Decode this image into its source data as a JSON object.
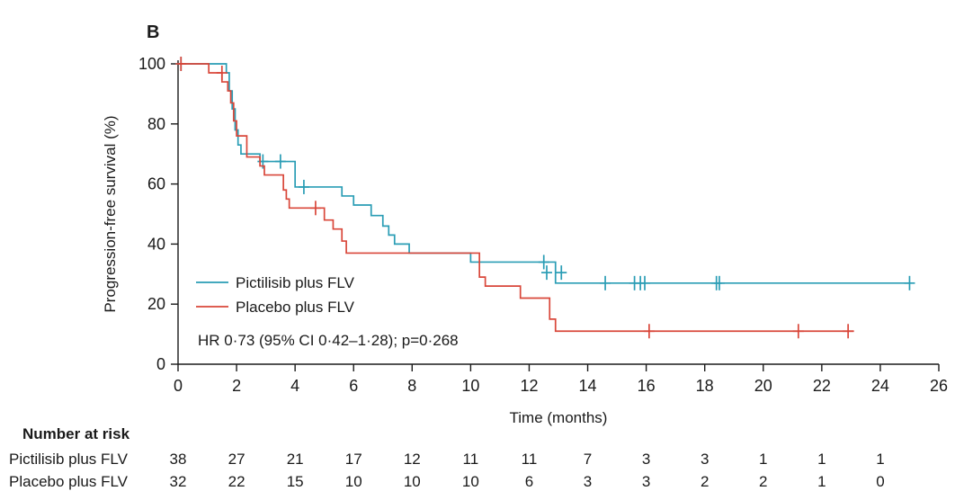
{
  "panel_label": "B",
  "chart_data": {
    "type": "line",
    "subtype": "kaplan-meier step",
    "xlabel": "Time (months)",
    "ylabel": "Progression-free survival (%)",
    "xlim": [
      0,
      26
    ],
    "ylim": [
      0,
      100
    ],
    "x_ticks": [
      0,
      2,
      4,
      6,
      8,
      10,
      12,
      14,
      16,
      18,
      20,
      22,
      24,
      26
    ],
    "y_ticks": [
      0,
      20,
      40,
      60,
      80,
      100
    ],
    "grid": false,
    "legend_position": "lower-left",
    "annotation": "HR 0·73 (95% CI 0·42–1·28); p=0·268",
    "series": [
      {
        "name": "Pictilisib plus FLV",
        "color": "#2a9db5",
        "steps": [
          [
            0,
            100
          ],
          [
            1.65,
            100
          ],
          [
            1.65,
            97
          ],
          [
            1.75,
            97
          ],
          [
            1.75,
            91
          ],
          [
            1.85,
            91
          ],
          [
            1.85,
            85
          ],
          [
            1.95,
            85
          ],
          [
            1.95,
            78
          ],
          [
            2.05,
            78
          ],
          [
            2.05,
            73
          ],
          [
            2.15,
            73
          ],
          [
            2.15,
            70
          ],
          [
            2.8,
            70
          ],
          [
            2.8,
            67.5
          ],
          [
            4,
            67.5
          ],
          [
            4,
            59
          ],
          [
            5.6,
            59
          ],
          [
            5.6,
            56
          ],
          [
            6,
            56
          ],
          [
            6,
            53
          ],
          [
            6.6,
            53
          ],
          [
            6.6,
            49.5
          ],
          [
            7,
            49.5
          ],
          [
            7,
            46
          ],
          [
            7.2,
            46
          ],
          [
            7.2,
            43
          ],
          [
            7.4,
            43
          ],
          [
            7.4,
            40
          ],
          [
            7.9,
            40
          ],
          [
            7.9,
            37
          ],
          [
            10,
            37
          ],
          [
            10,
            34
          ],
          [
            12.9,
            34
          ],
          [
            12.9,
            27
          ],
          [
            25,
            27
          ]
        ],
        "censor": [
          [
            0.1,
            100
          ],
          [
            2.9,
            67.5
          ],
          [
            3.5,
            67.5
          ],
          [
            4.3,
            59
          ],
          [
            12.5,
            34
          ],
          [
            12.6,
            30.5
          ],
          [
            13.1,
            30.5
          ],
          [
            14.6,
            27
          ],
          [
            15.6,
            27
          ],
          [
            15.8,
            27
          ],
          [
            15.95,
            27
          ],
          [
            18.4,
            27
          ],
          [
            18.5,
            27
          ],
          [
            25,
            27
          ]
        ]
      },
      {
        "name": "Placebo plus FLV",
        "color": "#d9473a",
        "steps": [
          [
            0,
            100
          ],
          [
            1.05,
            100
          ],
          [
            1.05,
            97
          ],
          [
            1.5,
            97
          ],
          [
            1.5,
            94
          ],
          [
            1.7,
            94
          ],
          [
            1.7,
            91
          ],
          [
            1.8,
            91
          ],
          [
            1.8,
            87
          ],
          [
            1.9,
            87
          ],
          [
            1.9,
            81
          ],
          [
            2,
            81
          ],
          [
            2,
            76
          ],
          [
            2.35,
            76
          ],
          [
            2.35,
            69
          ],
          [
            2.8,
            69
          ],
          [
            2.8,
            66
          ],
          [
            2.95,
            66
          ],
          [
            2.95,
            63
          ],
          [
            3.6,
            63
          ],
          [
            3.6,
            58
          ],
          [
            3.7,
            58
          ],
          [
            3.7,
            55
          ],
          [
            3.8,
            55
          ],
          [
            3.8,
            52
          ],
          [
            5,
            52
          ],
          [
            5,
            48
          ],
          [
            5.3,
            48
          ],
          [
            5.3,
            45
          ],
          [
            5.6,
            45
          ],
          [
            5.6,
            41
          ],
          [
            5.75,
            41
          ],
          [
            5.75,
            37
          ],
          [
            10.3,
            37
          ],
          [
            10.3,
            29
          ],
          [
            10.5,
            29
          ],
          [
            10.5,
            26
          ],
          [
            11.7,
            26
          ],
          [
            11.7,
            22
          ],
          [
            12.7,
            22
          ],
          [
            12.7,
            15
          ],
          [
            12.9,
            15
          ],
          [
            12.9,
            11
          ],
          [
            23.1,
            11
          ]
        ],
        "censor": [
          [
            0.1,
            100
          ],
          [
            1.5,
            97
          ],
          [
            4.7,
            52
          ],
          [
            16.1,
            11
          ],
          [
            21.2,
            11
          ],
          [
            22.9,
            11
          ]
        ]
      }
    ]
  },
  "risk_table": {
    "header": "Number at risk",
    "rows": [
      {
        "label": "Pictilisib plus FLV",
        "values": [
          "38",
          "27",
          "21",
          "17",
          "12",
          "11",
          "11",
          "7",
          "3",
          "3",
          "1",
          "1",
          "1"
        ]
      },
      {
        "label": "Placebo plus FLV",
        "values": [
          "32",
          "22",
          "15",
          "10",
          "10",
          "10",
          "6",
          "3",
          "3",
          "2",
          "2",
          "1",
          "0"
        ]
      }
    ]
  }
}
